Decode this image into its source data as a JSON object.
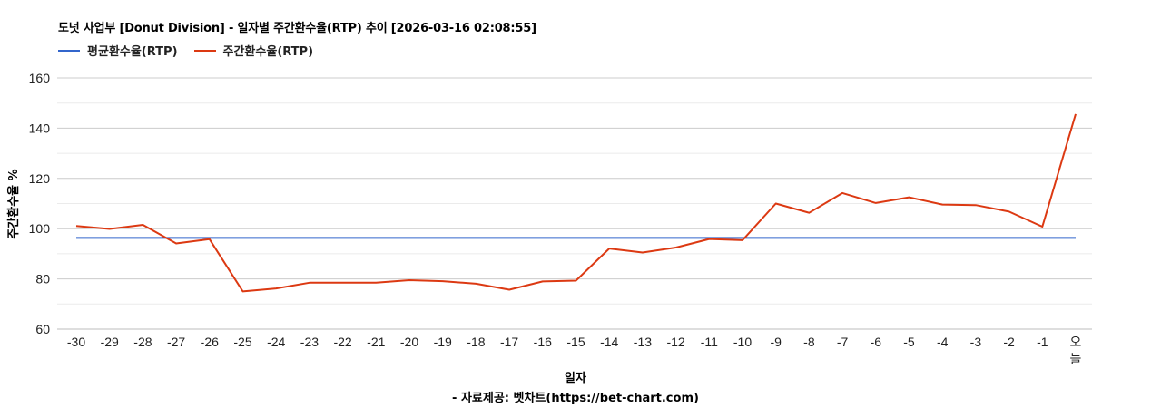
{
  "chart_data": {
    "type": "line",
    "title": "도넛 사업부 [Donut Division] - 일자별 주간환수율(RTP) 추이 [2026-03-16 02:08:55]",
    "xlabel": "일자",
    "ylabel": "주간환수율 %",
    "source_note": "- 자료제공: 벳차트(https://bet-chart.com)",
    "legend_position": "top-left",
    "grid": true,
    "ylim": [
      60,
      160
    ],
    "y_ticks": [
      60,
      80,
      100,
      120,
      140,
      160
    ],
    "categories": [
      "-30",
      "-29",
      "-28",
      "-27",
      "-26",
      "-25",
      "-24",
      "-23",
      "-22",
      "-21",
      "-20",
      "-19",
      "-18",
      "-17",
      "-16",
      "-15",
      "-14",
      "-13",
      "-12",
      "-11",
      "-10",
      "-9",
      "-8",
      "-7",
      "-6",
      "-5",
      "-4",
      "-3",
      "-2",
      "-1",
      "오늘"
    ],
    "series": [
      {
        "name": "평균환수율(RTP)",
        "color": "#3366cc",
        "values": [
          96.3,
          96.3,
          96.3,
          96.3,
          96.3,
          96.3,
          96.3,
          96.3,
          96.3,
          96.3,
          96.3,
          96.3,
          96.3,
          96.3,
          96.3,
          96.3,
          96.3,
          96.3,
          96.3,
          96.3,
          96.3,
          96.3,
          96.3,
          96.3,
          96.3,
          96.3,
          96.3,
          96.3,
          96.3,
          96.3,
          96.3
        ]
      },
      {
        "name": "주간환수율(RTP)",
        "color": "#dc3912",
        "values": [
          101.1,
          99.9,
          101.5,
          94.1,
          95.8,
          75.0,
          76.2,
          78.5,
          78.5,
          78.5,
          79.5,
          79.1,
          78.1,
          75.7,
          79.0,
          79.3,
          92.1,
          90.5,
          92.5,
          95.9,
          95.4,
          110.0,
          106.3,
          114.2,
          110.2,
          112.5,
          109.6,
          109.4,
          106.8,
          100.8,
          145.6
        ]
      }
    ]
  }
}
